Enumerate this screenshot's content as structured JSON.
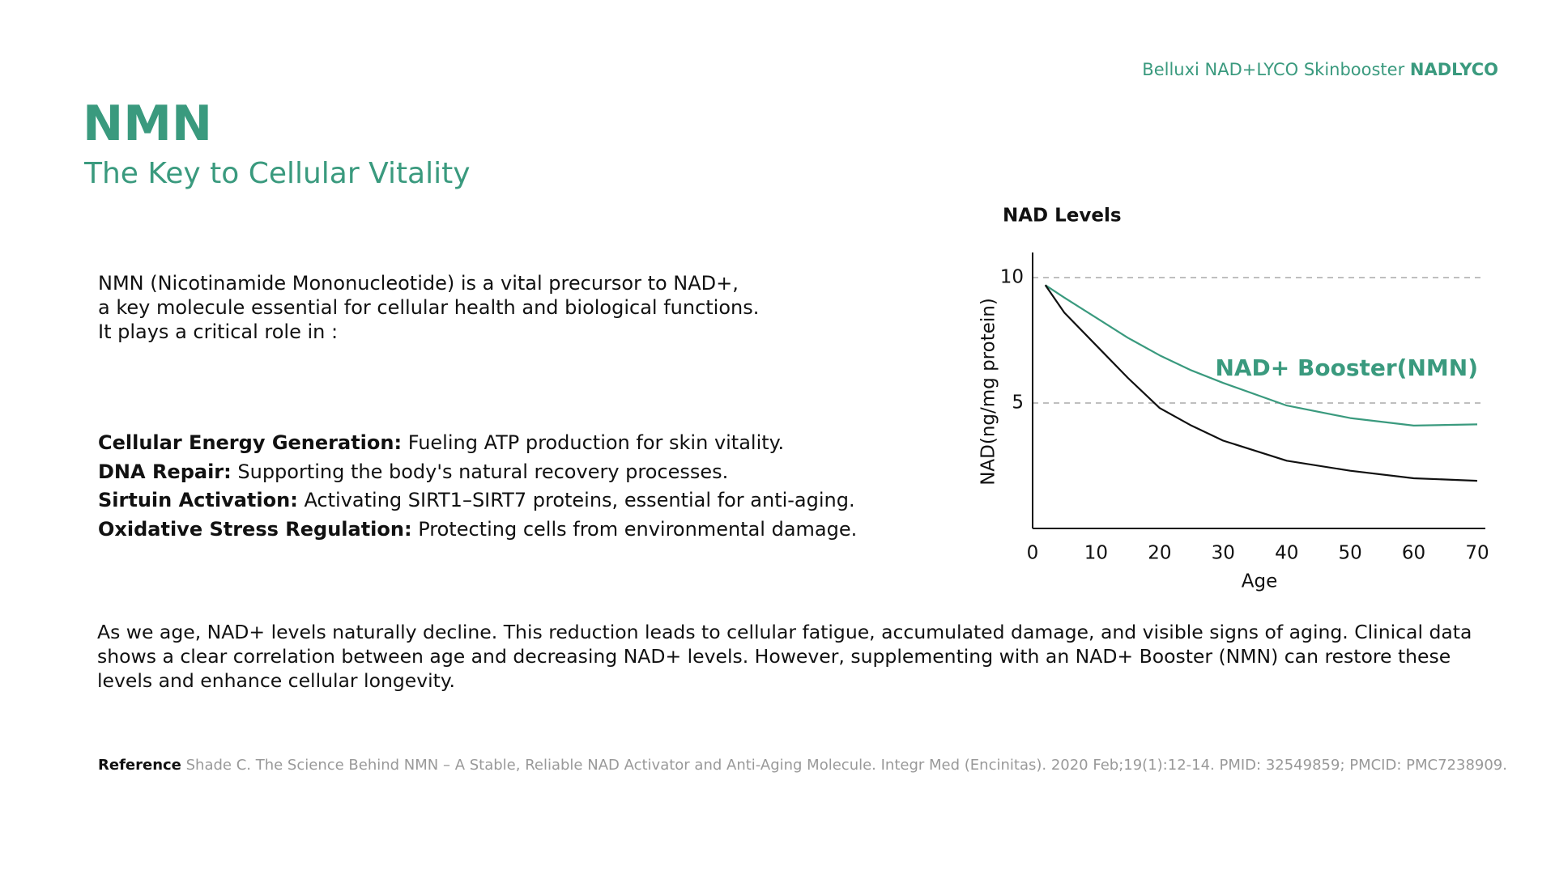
{
  "header": {
    "brand": "Belluxi NAD+LYCO Skinbooster",
    "brand_bold": "NADLYCO",
    "title": "NMN",
    "subtitle": "The Key to Cellular Vitality"
  },
  "intro": [
    "NMN (Nicotinamide Mononucleotide) is a vital precursor to NAD+,",
    "a key molecule essential for cellular health and biological functions.",
    "It plays a critical role in :"
  ],
  "bullets": [
    {
      "term": "Cellular Energy Generation:",
      "text": "Fueling ATP production for skin vitality."
    },
    {
      "term": "DNA Repair:",
      "text": "Supporting the body's natural recovery processes."
    },
    {
      "term": "Sirtuin Activation:",
      "text": "Activating SIRT1–SIRT7 proteins, essential for anti-aging."
    },
    {
      "term": "Oxidative Stress Regulation:",
      "text": "Protecting cells from environmental damage."
    }
  ],
  "summary": "As we age, NAD+ levels naturally decline. This reduction leads to cellular fatigue, accumulated damage, and visible signs of aging. Clinical data shows a clear correlation between age and decreasing NAD+ levels. However, supplementing with an NAD+ Booster (NMN) can restore these levels and enhance cellular longevity.",
  "reference": {
    "label": "Reference",
    "text": "Shade C. The Science Behind NMN – A Stable, Reliable NAD   Activator and Anti-Aging Molecule. Integr Med (Encinitas). 2020 Feb;19(1):12-14. PMID: 32549859; PMCID: PMC7238909."
  },
  "chart_data": {
    "type": "line",
    "title": "NAD Levels",
    "x_label": "Age",
    "y_label": "NAD(ng/mg protein)",
    "x": [
      2,
      5,
      10,
      15,
      20,
      25,
      30,
      40,
      50,
      60,
      70
    ],
    "series": [
      {
        "name": "NAD+ Booster(NMN)",
        "color": "#3a9a7e",
        "values": [
          9.7,
          9.2,
          8.4,
          7.6,
          6.9,
          6.3,
          5.8,
          4.9,
          4.4,
          4.1,
          4.15
        ]
      },
      {
        "color": "#111111",
        "values": [
          9.7,
          8.6,
          7.3,
          6.0,
          4.8,
          4.1,
          3.5,
          2.7,
          2.3,
          2.0,
          1.9
        ]
      }
    ],
    "xlim": [
      0,
      70
    ],
    "ylim": [
      0,
      11
    ],
    "xticks": [
      0,
      10,
      20,
      30,
      40,
      50,
      60,
      70
    ],
    "yticks": [
      5,
      10
    ],
    "grid": true
  }
}
